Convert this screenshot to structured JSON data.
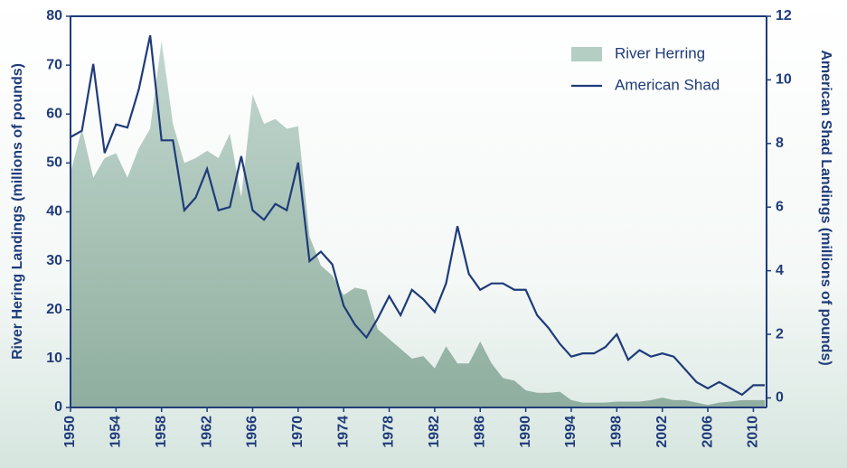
{
  "chart_data": {
    "type": "line",
    "ylabel": "River Hering Landings (millions of pounds)",
    "y2label": "American Shad Landings (millions of pounds)",
    "x": [
      1950,
      1951,
      1952,
      1953,
      1954,
      1955,
      1956,
      1957,
      1958,
      1959,
      1960,
      1961,
      1962,
      1963,
      1964,
      1965,
      1966,
      1967,
      1968,
      1969,
      1970,
      1971,
      1972,
      1973,
      1974,
      1975,
      1976,
      1977,
      1978,
      1979,
      1980,
      1981,
      1982,
      1983,
      1984,
      1985,
      1986,
      1987,
      1988,
      1989,
      1990,
      1991,
      1992,
      1993,
      1994,
      1995,
      1996,
      1997,
      1998,
      1999,
      2000,
      2001,
      2002,
      2003,
      2004,
      2005,
      2006,
      2007,
      2008,
      2009,
      2010,
      2011
    ],
    "xlim": [
      1950,
      2011
    ],
    "xticks": [
      1950,
      1954,
      1958,
      1962,
      1966,
      1970,
      1974,
      1978,
      1982,
      1986,
      1990,
      1994,
      1998,
      2002,
      2006,
      2010
    ],
    "ylim": [
      0,
      80
    ],
    "yticks": [
      0,
      10,
      20,
      30,
      40,
      50,
      60,
      70,
      80
    ],
    "y2lim": [
      -0.3,
      12
    ],
    "y2ticks": [
      0,
      2,
      4,
      6,
      8,
      10,
      12
    ],
    "legend": "upper right",
    "series": [
      {
        "name": "River Herring",
        "type": "area",
        "color": "#b4cec3",
        "values": [
          48,
          57,
          47,
          51,
          52,
          47,
          53,
          57,
          75,
          58,
          50,
          51,
          52.5,
          51,
          56,
          43,
          64,
          58,
          59,
          57,
          57.5,
          35,
          29,
          27,
          23,
          24.5,
          24,
          16,
          14,
          12,
          10,
          10.5,
          8,
          12.5,
          9,
          9,
          13.5,
          9,
          6,
          5.5,
          3.5,
          3,
          3,
          3.2,
          1.5,
          1,
          1,
          1,
          1.2,
          1.2,
          1.2,
          1.5,
          2,
          1.5,
          1.5,
          1,
          0.5,
          1,
          1.2,
          1.5,
          1.5,
          1.5
        ]
      },
      {
        "name": "American Shad",
        "type": "line",
        "axis": "y2",
        "color": "#1f3b7a",
        "values": [
          8.2,
          8.4,
          10.5,
          7.7,
          8.6,
          8.5,
          9.7,
          11.4,
          8.1,
          8.1,
          5.9,
          6.3,
          7.2,
          5.9,
          6.0,
          7.6,
          5.9,
          5.6,
          6.1,
          5.9,
          7.4,
          4.3,
          4.6,
          4.2,
          2.9,
          2.3,
          1.9,
          2.5,
          3.2,
          2.6,
          3.4,
          3.1,
          2.7,
          3.6,
          5.4,
          3.9,
          3.4,
          3.6,
          3.6,
          3.4,
          3.4,
          2.6,
          2.2,
          1.7,
          1.3,
          1.4,
          1.4,
          1.6,
          2.0,
          1.2,
          1.5,
          1.3,
          1.4,
          1.3,
          0.9,
          0.5,
          0.3,
          0.5,
          0.3,
          0.1,
          0.4,
          0.4
        ]
      }
    ]
  }
}
